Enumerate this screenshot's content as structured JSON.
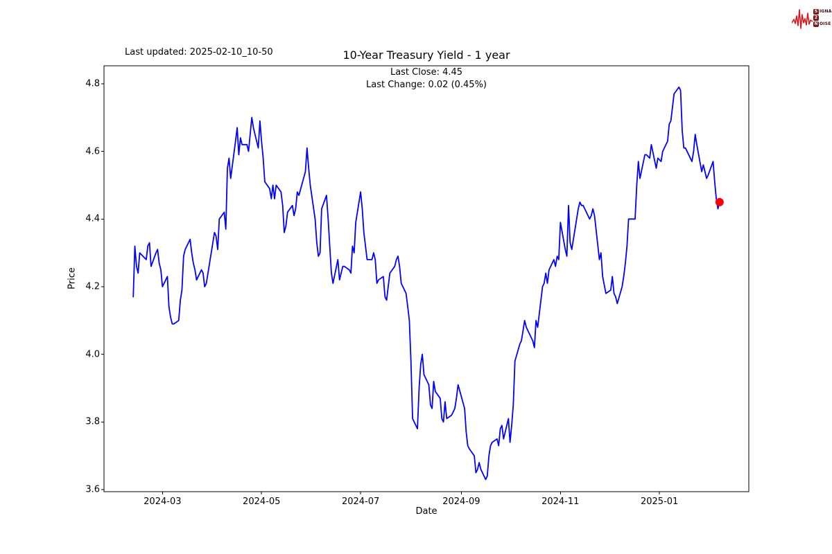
{
  "header": {
    "last_updated": "Last updated: 2025-02-10_10-50"
  },
  "logo": {
    "word1_initial": "S",
    "word1_rest": "IGNAL",
    "word2_initial": "2",
    "word3_initial": "N",
    "word3_rest": "OISE",
    "wave_color": "#d4191e",
    "badge_color": "#7e1416"
  },
  "chart_data": {
    "type": "line",
    "title": "10-Year Treasury Yield - 1 year",
    "subtitle": [
      "Last Close: 4.45",
      "Last Change: 0.02 (0.45%)"
    ],
    "last_close": 4.45,
    "last_change": "0.02 (0.45%)",
    "xlabel": "Date",
    "ylabel": "Price",
    "line_color": "#0000ff",
    "marker_color": "#ff0000",
    "axis_color": "#000000",
    "grid": false,
    "x_range": [
      "2024-01-25",
      "2025-02-25"
    ],
    "y_range": [
      3.594,
      4.853
    ],
    "y_ticks": [
      3.6,
      3.8,
      4.0,
      4.2,
      4.4,
      4.6,
      4.8
    ],
    "y_tick_labels": [
      "3.6",
      "3.8",
      "4.0",
      "4.2",
      "4.4",
      "4.6",
      "4.8"
    ],
    "x_ticks": [
      {
        "date": "2024-03-01",
        "label": "2024-03"
      },
      {
        "date": "2024-05-01",
        "label": "2024-05"
      },
      {
        "date": "2024-07-01",
        "label": "2024-07"
      },
      {
        "date": "2024-09-01",
        "label": "2024-09"
      },
      {
        "date": "2024-11-01",
        "label": "2024-11"
      },
      {
        "date": "2025-01-01",
        "label": "2025-01"
      }
    ],
    "series": [
      {
        "name": "10-Year Treasury Yield",
        "points": [
          [
            "2024-02-12",
            4.17
          ],
          [
            "2024-02-13",
            4.32
          ],
          [
            "2024-02-14",
            4.26
          ],
          [
            "2024-02-15",
            4.24
          ],
          [
            "2024-02-16",
            4.3
          ],
          [
            "2024-02-20",
            4.28
          ],
          [
            "2024-02-21",
            4.32
          ],
          [
            "2024-02-22",
            4.33
          ],
          [
            "2024-02-23",
            4.26
          ],
          [
            "2024-02-26",
            4.3
          ],
          [
            "2024-02-27",
            4.31
          ],
          [
            "2024-02-28",
            4.27
          ],
          [
            "2024-02-29",
            4.25
          ],
          [
            "2024-03-01",
            4.2
          ],
          [
            "2024-03-04",
            4.23
          ],
          [
            "2024-03-05",
            4.14
          ],
          [
            "2024-03-06",
            4.11
          ],
          [
            "2024-03-07",
            4.09
          ],
          [
            "2024-03-08",
            4.09
          ],
          [
            "2024-03-11",
            4.1
          ],
          [
            "2024-03-12",
            4.16
          ],
          [
            "2024-03-13",
            4.19
          ],
          [
            "2024-03-14",
            4.29
          ],
          [
            "2024-03-15",
            4.31
          ],
          [
            "2024-03-18",
            4.34
          ],
          [
            "2024-03-19",
            4.3
          ],
          [
            "2024-03-20",
            4.27
          ],
          [
            "2024-03-21",
            4.25
          ],
          [
            "2024-03-22",
            4.22
          ],
          [
            "2024-03-25",
            4.25
          ],
          [
            "2024-03-26",
            4.24
          ],
          [
            "2024-03-27",
            4.2
          ],
          [
            "2024-03-28",
            4.21
          ],
          [
            "2024-04-01",
            4.33
          ],
          [
            "2024-04-02",
            4.36
          ],
          [
            "2024-04-03",
            4.35
          ],
          [
            "2024-04-04",
            4.31
          ],
          [
            "2024-04-05",
            4.4
          ],
          [
            "2024-04-08",
            4.42
          ],
          [
            "2024-04-09",
            4.37
          ],
          [
            "2024-04-10",
            4.55
          ],
          [
            "2024-04-11",
            4.58
          ],
          [
            "2024-04-12",
            4.52
          ],
          [
            "2024-04-15",
            4.63
          ],
          [
            "2024-04-16",
            4.67
          ],
          [
            "2024-04-17",
            4.59
          ],
          [
            "2024-04-18",
            4.64
          ],
          [
            "2024-04-19",
            4.62
          ],
          [
            "2024-04-22",
            4.62
          ],
          [
            "2024-04-23",
            4.6
          ],
          [
            "2024-04-24",
            4.65
          ],
          [
            "2024-04-25",
            4.7
          ],
          [
            "2024-04-26",
            4.67
          ],
          [
            "2024-04-29",
            4.61
          ],
          [
            "2024-04-30",
            4.69
          ],
          [
            "2024-05-01",
            4.63
          ],
          [
            "2024-05-02",
            4.58
          ],
          [
            "2024-05-03",
            4.51
          ],
          [
            "2024-05-06",
            4.49
          ],
          [
            "2024-05-07",
            4.46
          ],
          [
            "2024-05-08",
            4.5
          ],
          [
            "2024-05-09",
            4.46
          ],
          [
            "2024-05-10",
            4.5
          ],
          [
            "2024-05-13",
            4.48
          ],
          [
            "2024-05-14",
            4.44
          ],
          [
            "2024-05-15",
            4.36
          ],
          [
            "2024-05-16",
            4.38
          ],
          [
            "2024-05-17",
            4.42
          ],
          [
            "2024-05-20",
            4.44
          ],
          [
            "2024-05-21",
            4.41
          ],
          [
            "2024-05-22",
            4.43
          ],
          [
            "2024-05-23",
            4.48
          ],
          [
            "2024-05-24",
            4.47
          ],
          [
            "2024-05-28",
            4.54
          ],
          [
            "2024-05-29",
            4.61
          ],
          [
            "2024-05-30",
            4.55
          ],
          [
            "2024-05-31",
            4.5
          ],
          [
            "2024-06-03",
            4.4
          ],
          [
            "2024-06-04",
            4.33
          ],
          [
            "2024-06-05",
            4.29
          ],
          [
            "2024-06-06",
            4.3
          ],
          [
            "2024-06-07",
            4.43
          ],
          [
            "2024-06-10",
            4.47
          ],
          [
            "2024-06-11",
            4.4
          ],
          [
            "2024-06-12",
            4.32
          ],
          [
            "2024-06-13",
            4.24
          ],
          [
            "2024-06-14",
            4.21
          ],
          [
            "2024-06-17",
            4.28
          ],
          [
            "2024-06-18",
            4.22
          ],
          [
            "2024-06-20",
            4.26
          ],
          [
            "2024-06-21",
            4.26
          ],
          [
            "2024-06-24",
            4.25
          ],
          [
            "2024-06-25",
            4.24
          ],
          [
            "2024-06-26",
            4.32
          ],
          [
            "2024-06-27",
            4.3
          ],
          [
            "2024-06-28",
            4.39
          ],
          [
            "2024-07-01",
            4.48
          ],
          [
            "2024-07-02",
            4.43
          ],
          [
            "2024-07-03",
            4.36
          ],
          [
            "2024-07-05",
            4.28
          ],
          [
            "2024-07-08",
            4.28
          ],
          [
            "2024-07-09",
            4.3
          ],
          [
            "2024-07-10",
            4.28
          ],
          [
            "2024-07-11",
            4.21
          ],
          [
            "2024-07-12",
            4.22
          ],
          [
            "2024-07-15",
            4.23
          ],
          [
            "2024-07-16",
            4.17
          ],
          [
            "2024-07-17",
            4.16
          ],
          [
            "2024-07-18",
            4.2
          ],
          [
            "2024-07-19",
            4.24
          ],
          [
            "2024-07-22",
            4.26
          ],
          [
            "2024-07-23",
            4.28
          ],
          [
            "2024-07-24",
            4.29
          ],
          [
            "2024-07-25",
            4.26
          ],
          [
            "2024-07-26",
            4.21
          ],
          [
            "2024-07-29",
            4.18
          ],
          [
            "2024-07-30",
            4.14
          ],
          [
            "2024-07-31",
            4.1
          ],
          [
            "2024-08-01",
            3.98
          ],
          [
            "2024-08-02",
            3.81
          ],
          [
            "2024-08-05",
            3.78
          ],
          [
            "2024-08-06",
            3.9
          ],
          [
            "2024-08-07",
            3.97
          ],
          [
            "2024-08-08",
            4.0
          ],
          [
            "2024-08-09",
            3.94
          ],
          [
            "2024-08-12",
            3.91
          ],
          [
            "2024-08-13",
            3.85
          ],
          [
            "2024-08-14",
            3.84
          ],
          [
            "2024-08-15",
            3.92
          ],
          [
            "2024-08-16",
            3.89
          ],
          [
            "2024-08-19",
            3.87
          ],
          [
            "2024-08-20",
            3.81
          ],
          [
            "2024-08-21",
            3.8
          ],
          [
            "2024-08-22",
            3.86
          ],
          [
            "2024-08-23",
            3.81
          ],
          [
            "2024-08-26",
            3.82
          ],
          [
            "2024-08-27",
            3.83
          ],
          [
            "2024-08-28",
            3.84
          ],
          [
            "2024-08-29",
            3.87
          ],
          [
            "2024-08-30",
            3.91
          ],
          [
            "2024-09-03",
            3.84
          ],
          [
            "2024-09-04",
            3.77
          ],
          [
            "2024-09-05",
            3.73
          ],
          [
            "2024-09-06",
            3.72
          ],
          [
            "2024-09-09",
            3.7
          ],
          [
            "2024-09-10",
            3.65
          ],
          [
            "2024-09-11",
            3.66
          ],
          [
            "2024-09-12",
            3.68
          ],
          [
            "2024-09-13",
            3.66
          ],
          [
            "2024-09-16",
            3.63
          ],
          [
            "2024-09-17",
            3.64
          ],
          [
            "2024-09-18",
            3.7
          ],
          [
            "2024-09-19",
            3.73
          ],
          [
            "2024-09-20",
            3.74
          ],
          [
            "2024-09-23",
            3.75
          ],
          [
            "2024-09-24",
            3.73
          ],
          [
            "2024-09-25",
            3.78
          ],
          [
            "2024-09-26",
            3.79
          ],
          [
            "2024-09-27",
            3.75
          ],
          [
            "2024-09-30",
            3.81
          ],
          [
            "2024-10-01",
            3.74
          ],
          [
            "2024-10-02",
            3.79
          ],
          [
            "2024-10-03",
            3.85
          ],
          [
            "2024-10-04",
            3.98
          ],
          [
            "2024-10-07",
            4.03
          ],
          [
            "2024-10-08",
            4.04
          ],
          [
            "2024-10-09",
            4.07
          ],
          [
            "2024-10-10",
            4.1
          ],
          [
            "2024-10-11",
            4.08
          ],
          [
            "2024-10-15",
            4.04
          ],
          [
            "2024-10-16",
            4.02
          ],
          [
            "2024-10-17",
            4.1
          ],
          [
            "2024-10-18",
            4.08
          ],
          [
            "2024-10-21",
            4.2
          ],
          [
            "2024-10-22",
            4.21
          ],
          [
            "2024-10-23",
            4.24
          ],
          [
            "2024-10-24",
            4.21
          ],
          [
            "2024-10-25",
            4.25
          ],
          [
            "2024-10-28",
            4.28
          ],
          [
            "2024-10-29",
            4.26
          ],
          [
            "2024-10-30",
            4.29
          ],
          [
            "2024-10-31",
            4.28
          ],
          [
            "2024-11-01",
            4.39
          ],
          [
            "2024-11-04",
            4.31
          ],
          [
            "2024-11-05",
            4.29
          ],
          [
            "2024-11-06",
            4.44
          ],
          [
            "2024-11-07",
            4.33
          ],
          [
            "2024-11-08",
            4.31
          ],
          [
            "2024-11-12",
            4.43
          ],
          [
            "2024-11-13",
            4.45
          ],
          [
            "2024-11-14",
            4.44
          ],
          [
            "2024-11-15",
            4.44
          ],
          [
            "2024-11-18",
            4.41
          ],
          [
            "2024-11-19",
            4.4
          ],
          [
            "2024-11-20",
            4.41
          ],
          [
            "2024-11-21",
            4.43
          ],
          [
            "2024-11-22",
            4.41
          ],
          [
            "2024-11-25",
            4.28
          ],
          [
            "2024-11-26",
            4.3
          ],
          [
            "2024-11-27",
            4.23
          ],
          [
            "2024-11-29",
            4.18
          ],
          [
            "2024-12-02",
            4.19
          ],
          [
            "2024-12-03",
            4.23
          ],
          [
            "2024-12-04",
            4.18
          ],
          [
            "2024-12-05",
            4.17
          ],
          [
            "2024-12-06",
            4.15
          ],
          [
            "2024-12-09",
            4.2
          ],
          [
            "2024-12-10",
            4.23
          ],
          [
            "2024-12-11",
            4.27
          ],
          [
            "2024-12-12",
            4.32
          ],
          [
            "2024-12-13",
            4.4
          ],
          [
            "2024-12-16",
            4.4
          ],
          [
            "2024-12-17",
            4.4
          ],
          [
            "2024-12-18",
            4.5
          ],
          [
            "2024-12-19",
            4.57
          ],
          [
            "2024-12-20",
            4.52
          ],
          [
            "2024-12-23",
            4.59
          ],
          [
            "2024-12-24",
            4.59
          ],
          [
            "2024-12-26",
            4.58
          ],
          [
            "2024-12-27",
            4.62
          ],
          [
            "2024-12-30",
            4.55
          ],
          [
            "2024-12-31",
            4.58
          ],
          [
            "2025-01-02",
            4.57
          ],
          [
            "2025-01-03",
            4.6
          ],
          [
            "2025-01-06",
            4.63
          ],
          [
            "2025-01-07",
            4.68
          ],
          [
            "2025-01-08",
            4.69
          ],
          [
            "2025-01-10",
            4.77
          ],
          [
            "2025-01-13",
            4.79
          ],
          [
            "2025-01-14",
            4.78
          ],
          [
            "2025-01-15",
            4.66
          ],
          [
            "2025-01-16",
            4.61
          ],
          [
            "2025-01-17",
            4.61
          ],
          [
            "2025-01-21",
            4.57
          ],
          [
            "2025-01-22",
            4.6
          ],
          [
            "2025-01-23",
            4.65
          ],
          [
            "2025-01-24",
            4.62
          ],
          [
            "2025-01-27",
            4.54
          ],
          [
            "2025-01-28",
            4.56
          ],
          [
            "2025-01-29",
            4.54
          ],
          [
            "2025-01-30",
            4.52
          ],
          [
            "2025-01-31",
            4.53
          ],
          [
            "2025-02-03",
            4.57
          ],
          [
            "2025-02-04",
            4.51
          ],
          [
            "2025-02-05",
            4.46
          ],
          [
            "2025-02-06",
            4.43
          ],
          [
            "2025-02-07",
            4.45
          ]
        ]
      }
    ],
    "last_point": [
      "2025-02-07",
      4.45
    ]
  }
}
